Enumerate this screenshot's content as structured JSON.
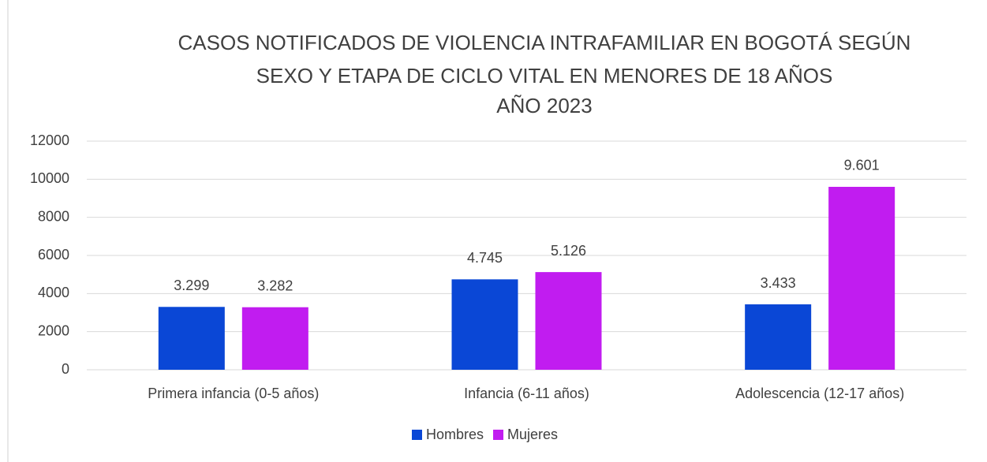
{
  "chart_data": {
    "type": "bar",
    "title": [
      "CASOS NOTIFICADOS DE VIOLENCIA INTRAFAMILIAR EN BOGOTÁ SEGÚN",
      "SEXO Y ETAPA DE CICLO VITAL EN MENORES DE 18 AÑOS",
      "AÑO 2023"
    ],
    "categories": [
      "Primera infancia (0-5 años)",
      "Infancia (6-11 años)",
      "Adolescencia (12-17 años)"
    ],
    "series": [
      {
        "name": "Hombres",
        "color": "#0a47d6",
        "values": [
          3299,
          4745,
          3433
        ],
        "value_labels": [
          "3.299",
          "4.745",
          "3.433"
        ]
      },
      {
        "name": "Mujeres",
        "color": "#c11cf0",
        "values": [
          3282,
          5126,
          9601
        ],
        "value_labels": [
          "3.282",
          "5.126",
          "9.601"
        ]
      }
    ],
    "ylim": [
      0,
      12000
    ],
    "yticks": [
      0,
      2000,
      4000,
      6000,
      8000,
      10000,
      12000
    ],
    "grid": true,
    "legend": "bottom"
  }
}
